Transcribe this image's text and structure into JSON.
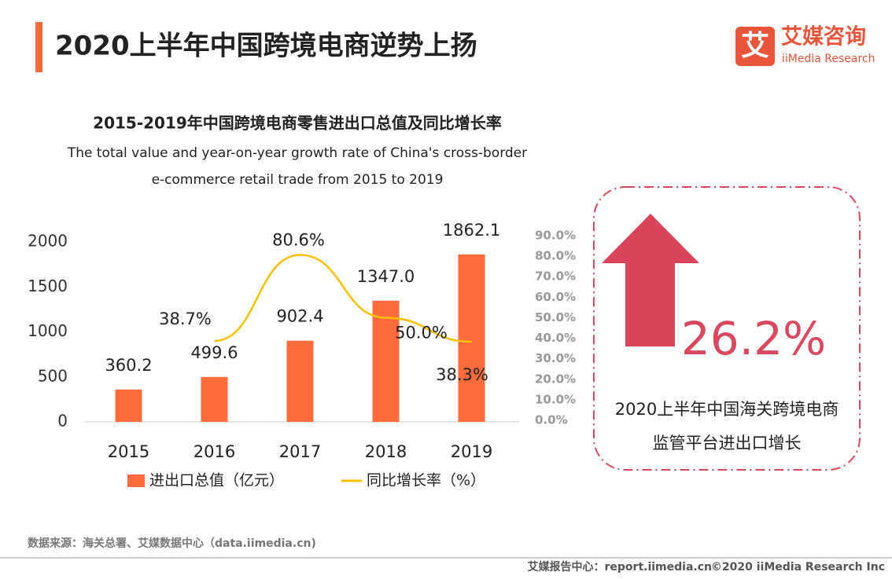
{
  "header": {
    "title": "2020上半年中国跨境电商逆势上扬",
    "logo_mark": "艾",
    "logo_cn": "艾媒咨询",
    "logo_en": "iiMedia Research"
  },
  "chart_data": {
    "type": "bar",
    "title": "2015-2019年中国跨境电商零售进出口总值及同比增长率",
    "subtitle": [
      "The total value and year-on-year growth rate of China's cross-border",
      "e-commerce retail trade from 2015 to 2019"
    ],
    "categories": [
      "2015",
      "2016",
      "2017",
      "2018",
      "2019"
    ],
    "series": [
      {
        "name": "进出口总值（亿元）",
        "color": "#fe6b3c",
        "values": [
          360.2,
          499.6,
          902.4,
          1347.0,
          1862.1
        ],
        "value_labels": [
          "360.2",
          "499.6",
          "902.4",
          "1347.0",
          "1862.1"
        ]
      },
      {
        "name": "同比增长率（%）",
        "type": "line",
        "axis": "y2",
        "color": "#f6c100",
        "values": [
          null,
          38.7,
          80.6,
          50.0,
          38.3
        ],
        "value_labels": [
          null,
          "38.7%",
          "80.6%",
          "50.0%",
          "38.3%"
        ]
      }
    ],
    "ylim": [
      0,
      2000
    ],
    "yticks": [
      0,
      500,
      1000,
      1500,
      2000
    ],
    "y2lim": [
      0,
      90
    ],
    "y2ticks": [
      {
        "value": 0,
        "label": "0.0%"
      },
      {
        "value": 10,
        "label": "10.0%"
      },
      {
        "value": 20,
        "label": "20.0%"
      },
      {
        "value": 30,
        "label": "30.0%"
      },
      {
        "value": 40,
        "label": "40.0%"
      },
      {
        "value": 50,
        "label": "50.0%"
      },
      {
        "value": 60,
        "label": "60.0%"
      },
      {
        "value": 70,
        "label": "70.0%"
      },
      {
        "value": 80,
        "label": "80.0%"
      },
      {
        "value": 90,
        "label": "90.0%"
      }
    ]
  },
  "callout": {
    "value": "26.2%",
    "lines": [
      "2020上半年中国海关跨境电商",
      "监管平台进出口增长"
    ]
  },
  "footer": {
    "source": "数据来源：海关总署、艾媒数据中心（data.iimedia.cn)",
    "site": "艾媒报告中心：report.iimedia.cn",
    "copyright": "©2020  iiMedia Research  Inc"
  }
}
